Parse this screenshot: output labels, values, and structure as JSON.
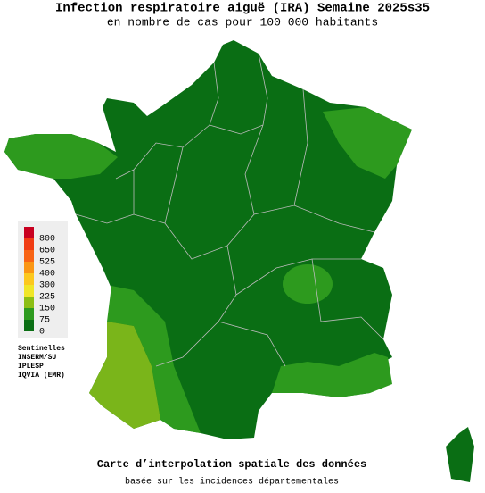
{
  "header": {
    "title": "Infection respiratoire aiguë (IRA) Semaine 2025s35",
    "subtitle": "en nombre de cas pour 100 000 habitants"
  },
  "legend": {
    "labels": [
      800,
      650,
      525,
      400,
      300,
      225,
      150,
      75,
      0
    ],
    "colors": [
      "#c80020",
      "#f03c14",
      "#f86414",
      "#fa9614",
      "#fcc81e",
      "#f0e628",
      "#8cbe14",
      "#2d9a1e",
      "#0a6e14"
    ]
  },
  "sources": [
    "Sentinelles",
    "INSERM/SU",
    "IPLESP",
    "IQVIA (EMR)"
  ],
  "footer": {
    "title": "Carte d’interpolation spatiale des données",
    "subtitle": "basée sur les incidences départementales"
  }
}
